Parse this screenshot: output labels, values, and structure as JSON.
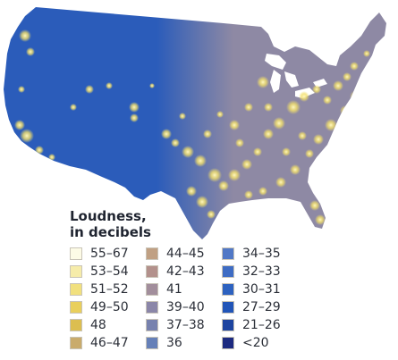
{
  "legend": {
    "title_line1": "Loudness,",
    "title_line2": "in decibels",
    "items": [
      {
        "label": "55–67",
        "color": "#fdfbe6"
      },
      {
        "label": "53–54",
        "color": "#f6ecaa"
      },
      {
        "label": "51–52",
        "color": "#f1e07e"
      },
      {
        "label": "49–50",
        "color": "#e9cf5c"
      },
      {
        "label": "48",
        "color": "#dcbe50"
      },
      {
        "label": "46–47",
        "color": "#c9ab6c"
      },
      {
        "label": "44–45",
        "color": "#c0a083"
      },
      {
        "label": "42–43",
        "color": "#b3918c"
      },
      {
        "label": "41",
        "color": "#a28e9c"
      },
      {
        "label": "39–40",
        "color": "#8b86a8"
      },
      {
        "label": "37–38",
        "color": "#7781ae"
      },
      {
        "label": "36",
        "color": "#6680b8"
      },
      {
        "label": "34–35",
        "color": "#5178c6"
      },
      {
        "label": "32–33",
        "color": "#3e6cc4"
      },
      {
        "label": "30–31",
        "color": "#2d62c0"
      },
      {
        "label": "27–29",
        "color": "#2155b8"
      },
      {
        "label": "21–26",
        "color": "#1d44a0"
      },
      {
        "label": "<20",
        "color": "#1c2a80"
      }
    ]
  },
  "map_colors": {
    "west": "#2b5cba",
    "east": "#8e89a4",
    "light": "#f2df6a"
  }
}
